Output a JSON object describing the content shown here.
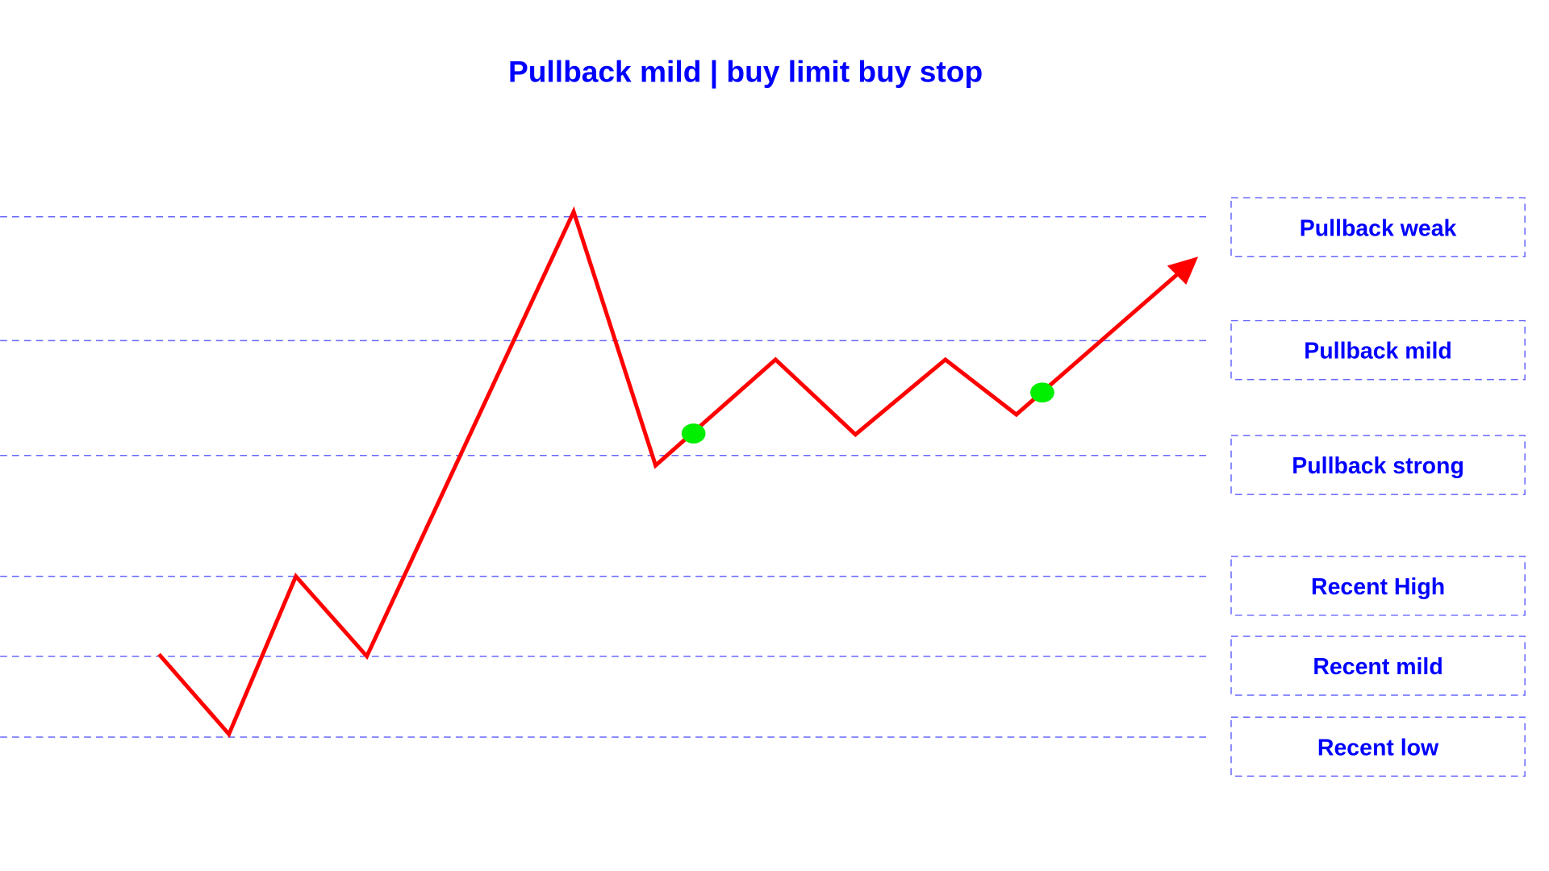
{
  "title": "Pullback mild | buy limit buy stop",
  "levels": [
    {
      "label": "Pullback weak"
    },
    {
      "label": "Pullback mild"
    },
    {
      "label": "Pullback strong"
    },
    {
      "label": "Recent High"
    },
    {
      "label": "Recent mild"
    },
    {
      "label": "Recent low"
    }
  ],
  "colors": {
    "text": "#0000ff",
    "level_line": "#6666ff",
    "price_path": "#ff0000",
    "entry_marker": "#00ee00"
  },
  "markers": [
    "buy-limit-entry",
    "buy-stop-entry"
  ]
}
